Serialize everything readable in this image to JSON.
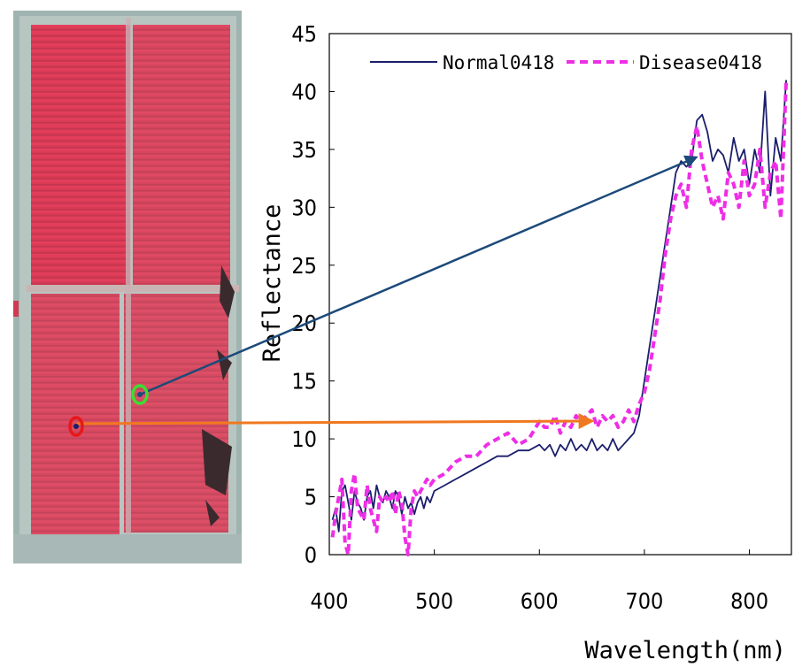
{
  "chart_data": {
    "type": "line",
    "xlabel": "Wavelength(nm)",
    "ylabel": "Reflectance",
    "xlim": [
      400,
      840
    ],
    "ylim": [
      0,
      45
    ],
    "x_ticks": [
      400,
      500,
      600,
      700,
      800
    ],
    "y_ticks": [
      0,
      5,
      10,
      15,
      20,
      25,
      30,
      35,
      40,
      45
    ],
    "grid": false,
    "legend_position": "top",
    "series": [
      {
        "name": "Normal0418",
        "color": "#1a1f6b",
        "style": "solid",
        "x": [
          403,
          406,
          409,
          412,
          415,
          418,
          421,
          424,
          427,
          430,
          433,
          436,
          439,
          442,
          445,
          448,
          451,
          454,
          457,
          460,
          463,
          466,
          469,
          472,
          475,
          478,
          481,
          484,
          487,
          490,
          493,
          496,
          500,
          510,
          520,
          530,
          540,
          550,
          560,
          570,
          580,
          590,
          600,
          605,
          610,
          615,
          620,
          625,
          630,
          635,
          640,
          645,
          650,
          655,
          660,
          665,
          670,
          675,
          680,
          685,
          690,
          695,
          700,
          705,
          710,
          715,
          720,
          725,
          730,
          735,
          740,
          745,
          750,
          755,
          760,
          765,
          770,
          775,
          780,
          785,
          790,
          795,
          800,
          805,
          810,
          815,
          820,
          825,
          830,
          835
        ],
        "y": [
          3.0,
          4.0,
          2.0,
          5.5,
          6.0,
          4.5,
          3.0,
          5.5,
          4.5,
          4.0,
          3.0,
          5.0,
          5.5,
          4.0,
          6.0,
          5.0,
          4.5,
          5.5,
          5.0,
          4.0,
          5.5,
          5.0,
          3.5,
          5.0,
          4.0,
          4.5,
          3.5,
          4.5,
          5.0,
          4.0,
          5.0,
          4.5,
          5.5,
          6.0,
          6.5,
          7.0,
          7.5,
          8.0,
          8.5,
          8.5,
          9.0,
          9.0,
          9.5,
          9.0,
          9.5,
          8.5,
          9.5,
          9.0,
          10.0,
          9.0,
          9.5,
          9.0,
          10.0,
          9.0,
          9.5,
          9.0,
          10.0,
          9.0,
          9.5,
          10.0,
          10.5,
          12.0,
          15.0,
          18.0,
          21.0,
          24.0,
          27.0,
          30.0,
          33.0,
          34.0,
          33.5,
          34.0,
          37.5,
          38.0,
          36.5,
          34.0,
          35.0,
          34.5,
          33.0,
          36.0,
          34.0,
          35.0,
          32.0,
          35.0,
          33.0,
          40.0,
          31.0,
          36.0,
          34.0,
          41.0
        ]
      },
      {
        "name": "Disease0418",
        "color": "#ee2ee6",
        "style": "dashed",
        "x": [
          403,
          406,
          409,
          412,
          415,
          418,
          421,
          424,
          427,
          430,
          433,
          436,
          439,
          442,
          445,
          448,
          451,
          454,
          457,
          460,
          463,
          466,
          469,
          472,
          475,
          478,
          481,
          484,
          487,
          490,
          493,
          496,
          500,
          510,
          520,
          530,
          540,
          550,
          560,
          570,
          580,
          590,
          600,
          605,
          610,
          615,
          620,
          625,
          630,
          635,
          640,
          645,
          650,
          655,
          660,
          665,
          670,
          675,
          680,
          685,
          690,
          695,
          700,
          705,
          710,
          715,
          720,
          725,
          730,
          735,
          740,
          745,
          750,
          755,
          760,
          765,
          770,
          775,
          780,
          785,
          790,
          795,
          800,
          805,
          810,
          815,
          820,
          825,
          830,
          835
        ],
        "y": [
          1.5,
          3.5,
          5.0,
          6.5,
          1.0,
          0.0,
          5.5,
          7.0,
          4.0,
          3.5,
          3.0,
          6.0,
          4.0,
          3.0,
          2.0,
          5.0,
          4.5,
          5.0,
          4.5,
          5.5,
          3.5,
          5.5,
          4.5,
          1.5,
          0.0,
          4.0,
          5.5,
          5.0,
          5.5,
          6.0,
          6.5,
          6.0,
          6.5,
          7.0,
          8.0,
          8.5,
          8.5,
          9.5,
          10.0,
          10.5,
          9.5,
          10.0,
          11.5,
          11.0,
          11.0,
          12.0,
          10.5,
          11.5,
          11.0,
          12.0,
          11.5,
          12.0,
          12.5,
          11.0,
          12.0,
          11.5,
          12.0,
          11.0,
          11.5,
          12.5,
          11.5,
          13.0,
          14.0,
          16.0,
          19.0,
          22.0,
          26.0,
          29.0,
          31.0,
          32.0,
          30.0,
          35.0,
          37.0,
          34.0,
          32.0,
          30.0,
          31.0,
          29.0,
          33.0,
          32.0,
          30.0,
          34.0,
          31.0,
          32.0,
          35.0,
          30.0,
          33.0,
          34.0,
          29.0,
          41.0
        ]
      }
    ]
  },
  "arrows": [
    {
      "name": "normal",
      "color": "#1c4a7a",
      "marker_color": "#3adf30"
    },
    {
      "name": "disease",
      "color": "#f07820",
      "marker_color": "#e81818"
    }
  ]
}
